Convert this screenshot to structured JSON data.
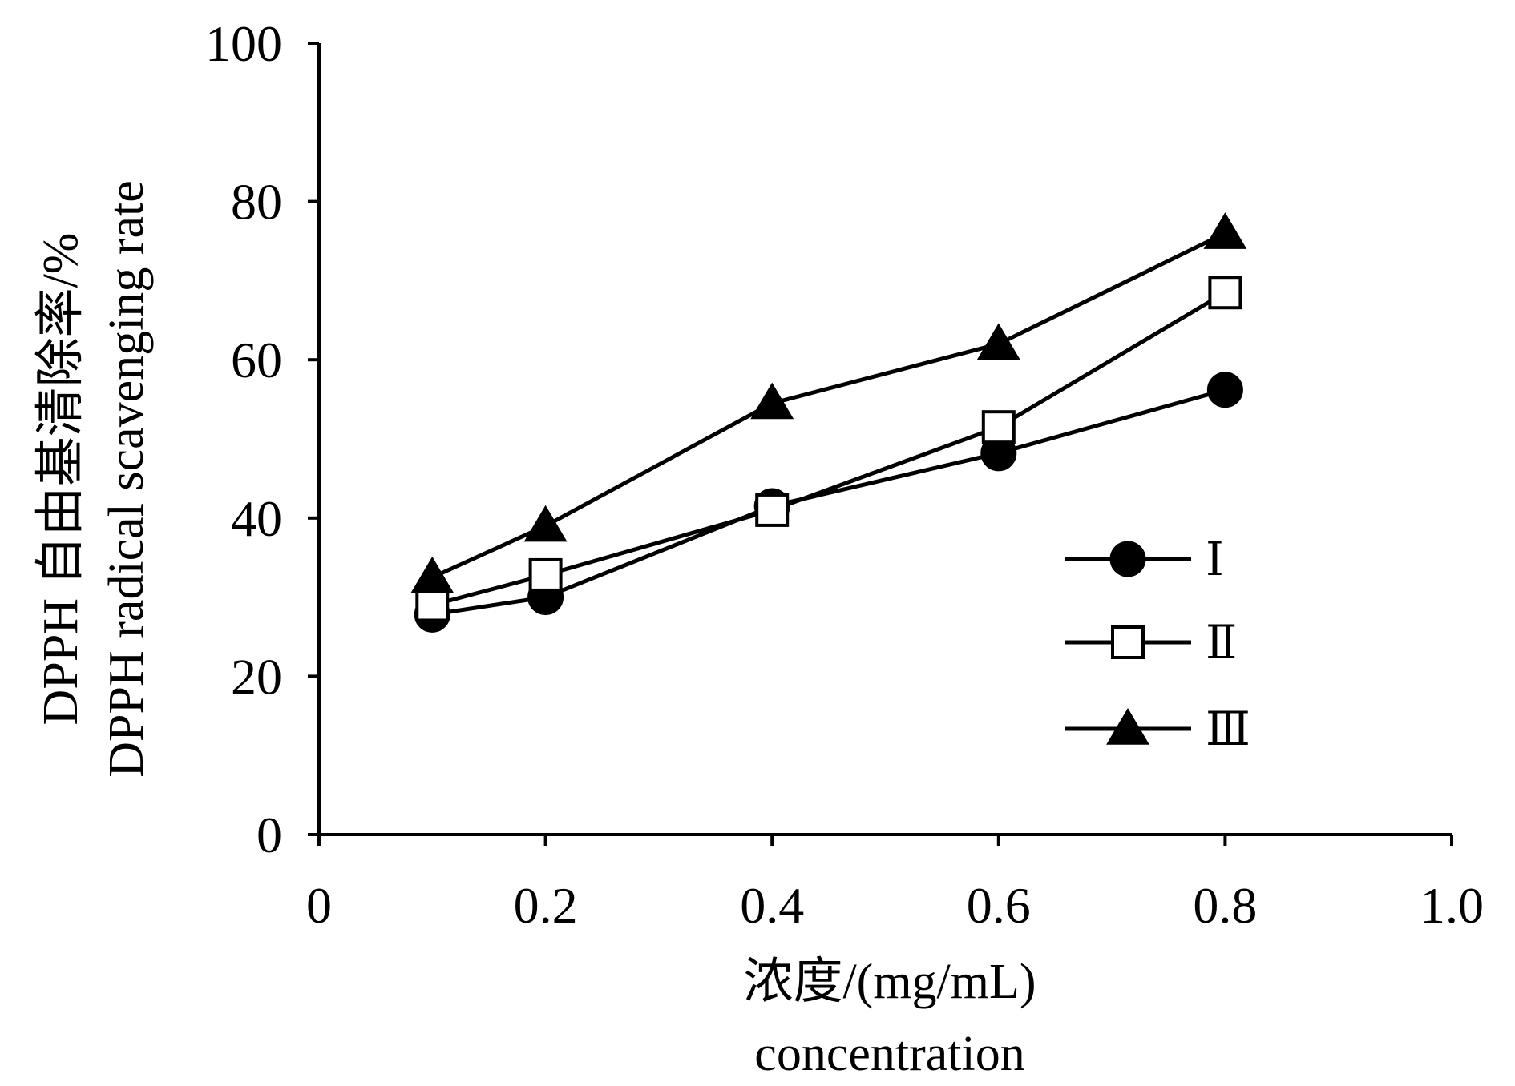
{
  "chart_data": {
    "type": "line",
    "x": [
      0.1,
      0.2,
      0.4,
      0.6,
      0.8
    ],
    "series": [
      {
        "name": "Ⅰ",
        "marker": "circle-filled",
        "values": [
          27.8,
          30.0,
          41.5,
          48.2,
          56.2
        ]
      },
      {
        "name": "Ⅱ",
        "marker": "square-open",
        "values": [
          29.0,
          32.8,
          41.0,
          51.5,
          68.5
        ]
      },
      {
        "name": "Ⅲ",
        "marker": "triangle-filled",
        "values": [
          32.5,
          39.0,
          54.5,
          62.0,
          76.0
        ]
      }
    ],
    "xlim": [
      0,
      1.0
    ],
    "ylim": [
      0,
      100
    ],
    "x_ticks": [
      0,
      0.2,
      0.4,
      0.6,
      0.8,
      1.0
    ],
    "x_tick_labels": [
      "0",
      "0.2",
      "0.4",
      "0.6",
      "0.8",
      "1.0"
    ],
    "y_ticks": [
      0,
      20,
      40,
      60,
      80,
      100
    ],
    "y_tick_labels": [
      "0",
      "20",
      "40",
      "60",
      "80",
      "100"
    ],
    "xlabel": "浓度/(mg/mL)",
    "xlabel_en": "concentration",
    "ylabel": "DPPH 自由基清除率/%",
    "ylabel_en": "DPPH radical scavenging rate",
    "grid": false,
    "legend_position": "right",
    "line_color": "#000000"
  }
}
